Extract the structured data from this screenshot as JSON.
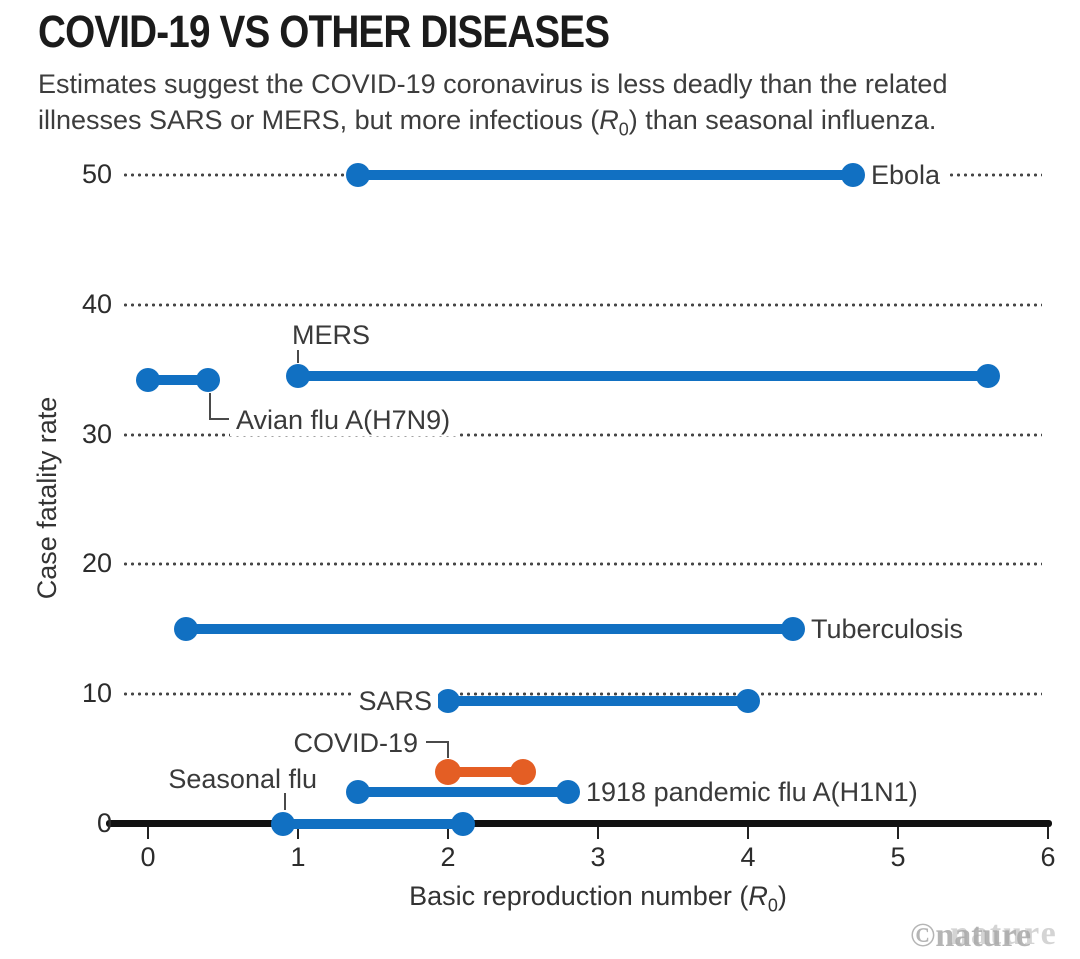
{
  "header": {
    "title": "COVID-19 VS OTHER DISEASES",
    "subtitle_line1": "Estimates suggest the COVID-19 coronavirus is less deadly than the related",
    "subtitle_line2_pre": "illnesses SARS or MERS, but more infectious (",
    "r_symbol": "R",
    "r_subscript": "0",
    "subtitle_line2_post": ") than seasonal influenza."
  },
  "watermark": {
    "text": "©nature",
    "ghost": "nature"
  },
  "chart_data": {
    "type": "bar",
    "variant": "horizontal-dumbbell-range",
    "title": "COVID-19 VS OTHER DISEASES",
    "xlabel_pre": "Basic reproduction number (",
    "xlabel_r": "R",
    "xlabel_sub": "0",
    "xlabel_post": ")",
    "ylabel": "Case fatality rate",
    "xlim": [
      0,
      6
    ],
    "ylim": [
      0,
      50
    ],
    "x_ticks": [
      0,
      1,
      2,
      3,
      4,
      5,
      6
    ],
    "y_ticks": [
      0,
      10,
      20,
      30,
      40,
      50
    ],
    "grid": "dotted-horizontal",
    "legend": "none",
    "colors": {
      "primary": "#1170c2",
      "highlight": "#e45e24"
    },
    "series": [
      {
        "name": "Ebola",
        "r0": [
          1.4,
          4.7
        ],
        "cfr": 50,
        "color": "primary",
        "label_side": "right"
      },
      {
        "name": "MERS",
        "r0": [
          1.0,
          5.6
        ],
        "cfr": 34.5,
        "color": "primary",
        "label_side": "above-start"
      },
      {
        "name": "Avian flu A(H7N9)",
        "r0": [
          0.0,
          0.4
        ],
        "cfr": 34.2,
        "color": "primary",
        "label_side": "below-end-elbow"
      },
      {
        "name": "Tuberculosis",
        "r0": [
          0.25,
          4.3
        ],
        "cfr": 15,
        "color": "primary",
        "label_side": "right"
      },
      {
        "name": "SARS",
        "r0": [
          2.0,
          4.0
        ],
        "cfr": 9.5,
        "color": "primary",
        "label_side": "left"
      },
      {
        "name": "COVID-19",
        "r0": [
          2.0,
          2.5
        ],
        "cfr": 4,
        "color": "highlight",
        "label_side": "above-start-elbow"
      },
      {
        "name": "1918 pandemic flu A(H1N1)",
        "r0": [
          1.4,
          2.8
        ],
        "cfr": 2.5,
        "color": "primary",
        "label_side": "right"
      },
      {
        "name": "Seasonal flu",
        "r0": [
          0.9,
          2.1
        ],
        "cfr": 0,
        "color": "primary",
        "label_side": "above-start-offset"
      }
    ]
  }
}
